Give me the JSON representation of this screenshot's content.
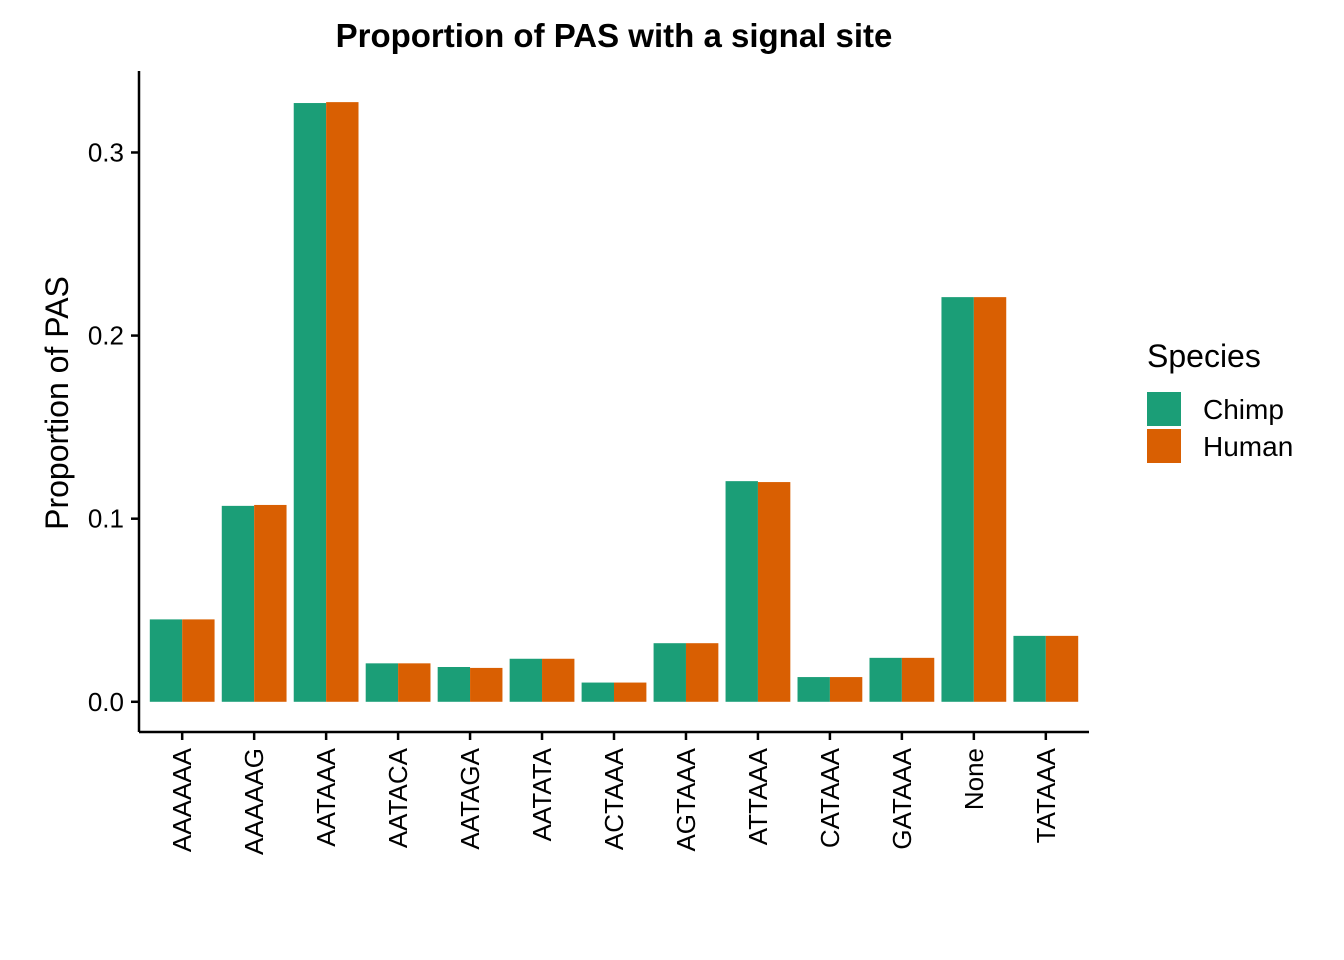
{
  "chart_data": {
    "type": "bar",
    "title": "Proportion of PAS with a signal site",
    "xlabel": "",
    "ylabel": "Proportion of PAS",
    "categories": [
      "AAAAAA",
      "AAAAAG",
      "AATAAA",
      "AATACA",
      "AATAGA",
      "AATATA",
      "ACTAAA",
      "AGTAAA",
      "ATTAAA",
      "CATAAA",
      "GATAAA",
      "None",
      "TATAAA"
    ],
    "series": [
      {
        "name": "Chimp",
        "color": "#1B9E77",
        "values": [
          0.045,
          0.107,
          0.327,
          0.021,
          0.019,
          0.0235,
          0.0105,
          0.032,
          0.1205,
          0.0135,
          0.024,
          0.221,
          0.036
        ]
      },
      {
        "name": "Human",
        "color": "#D95F02",
        "values": [
          0.045,
          0.1075,
          0.3275,
          0.021,
          0.0185,
          0.0235,
          0.0105,
          0.032,
          0.12,
          0.0135,
          0.024,
          0.221,
          0.036
        ]
      }
    ],
    "ylim": [
      -0.0165,
      0.3445
    ],
    "yticks": [
      0.0,
      0.1,
      0.2,
      0.3
    ],
    "ytick_labels": [
      "0.0",
      "0.1",
      "0.2",
      "0.3"
    ],
    "grid": false,
    "legend": {
      "title": "Species",
      "position": "right"
    }
  }
}
